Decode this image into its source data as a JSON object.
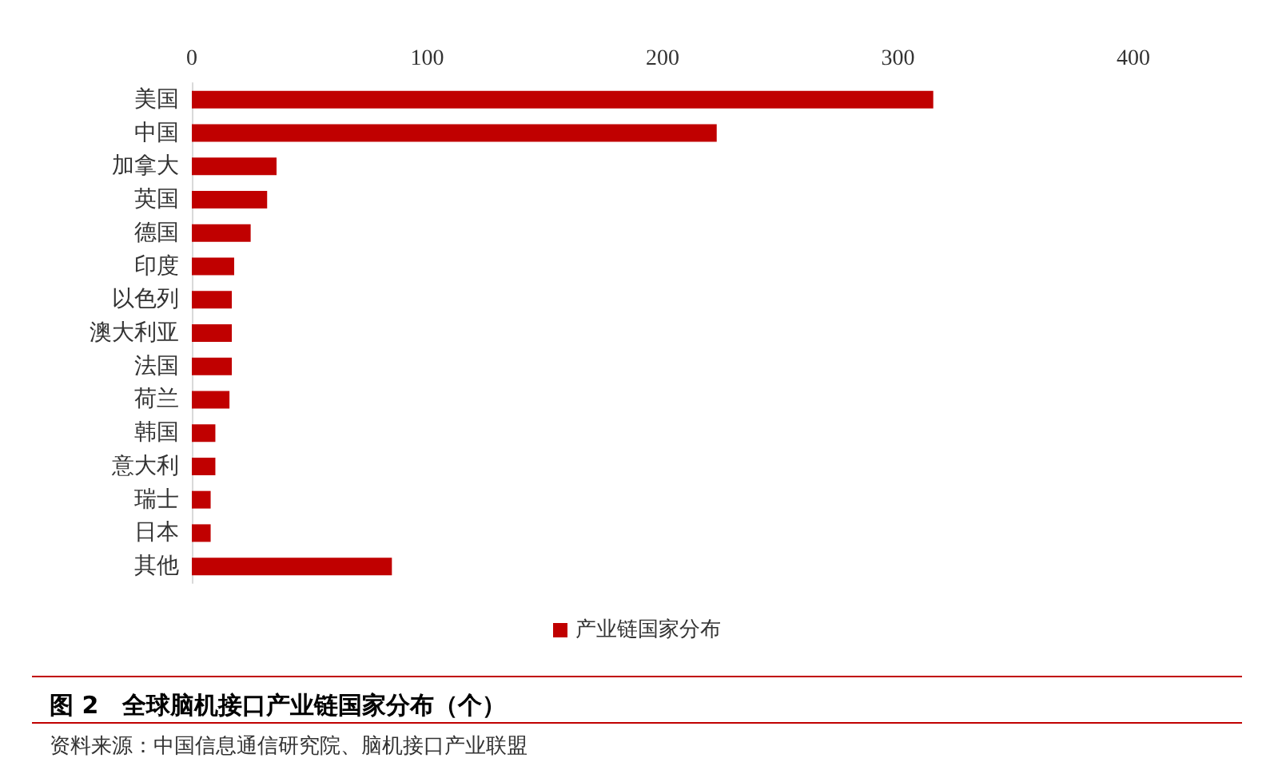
{
  "chart_data": {
    "type": "bar",
    "orientation": "horizontal",
    "title": "图 2　全球脑机接口产业链国家分布（个）",
    "categories": [
      "美国",
      "中国",
      "加拿大",
      "英国",
      "德国",
      "印度",
      "以色列",
      "澳大利亚",
      "法国",
      "荷兰",
      "韩国",
      "意大利",
      "瑞士",
      "日本",
      "其他"
    ],
    "series": [
      {
        "name": "产业链国家分布",
        "color": "#c00000",
        "values": [
          315,
          223,
          36,
          32,
          25,
          18,
          17,
          17,
          17,
          16,
          10,
          10,
          8,
          8,
          85
        ]
      }
    ],
    "xlim": [
      0,
      400
    ],
    "xticks": [
      0,
      100,
      200,
      300,
      400
    ],
    "grid": false,
    "legend": "bottom",
    "annotations": [
      "资料来源：中国信息通信研究院、脑机接口产业联盟"
    ]
  }
}
